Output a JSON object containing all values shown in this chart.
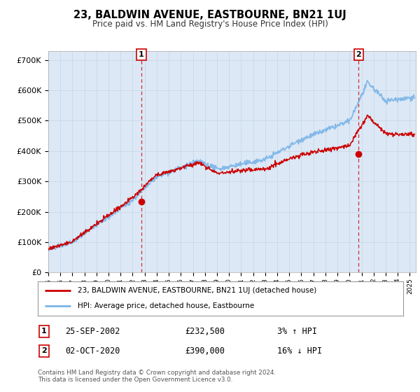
{
  "title": "23, BALDWIN AVENUE, EASTBOURNE, BN21 1UJ",
  "subtitle": "Price paid vs. HM Land Registry's House Price Index (HPI)",
  "ylabel_ticks": [
    "£0",
    "£100K",
    "£200K",
    "£300K",
    "£400K",
    "£500K",
    "£600K",
    "£700K"
  ],
  "ylim": [
    0,
    730000
  ],
  "xlim_start": 1995.0,
  "xlim_end": 2025.5,
  "sale1_date": 2002.73,
  "sale1_price": 232500,
  "sale1_label": "1",
  "sale2_date": 2020.75,
  "sale2_price": 390000,
  "sale2_label": "2",
  "legend_line1": "23, BALDWIN AVENUE, EASTBOURNE, BN21 1UJ (detached house)",
  "legend_line2": "HPI: Average price, detached house, Eastbourne",
  "transaction1_date": "25-SEP-2002",
  "transaction1_price": "£232,500",
  "transaction1_hpi": "3% ↑ HPI",
  "transaction2_date": "02-OCT-2020",
  "transaction2_price": "£390,000",
  "transaction2_hpi": "16% ↓ HPI",
  "footer": "Contains HM Land Registry data © Crown copyright and database right 2024.\nThis data is licensed under the Open Government Licence v3.0.",
  "hpi_color": "#7ab4e8",
  "sale_color": "#cc0000",
  "sale_dot_color": "#cc0000",
  "vline_color": "#cc0000",
  "grid_color": "#c8d8e8",
  "bg_color": "#ffffff",
  "plot_bg_color": "#dce8f5"
}
